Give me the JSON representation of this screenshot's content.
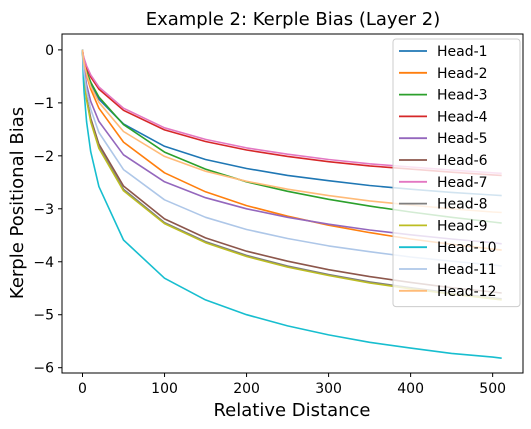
{
  "chart_data": {
    "type": "line",
    "title": "Example 2: Kerple Bias (Layer 2)",
    "xlabel": "Relative Distance",
    "ylabel": "Kerple Positional Bias",
    "xlim": [
      -25,
      537
    ],
    "ylim": [
      -6.1,
      0.3
    ],
    "xticks": [
      0,
      100,
      200,
      300,
      400,
      500
    ],
    "yticks": [
      0,
      -1,
      -2,
      -3,
      -4,
      -5,
      -6
    ],
    "grid": false,
    "legend_position": "top-right",
    "x": [
      0,
      1,
      2,
      5,
      10,
      20,
      50,
      100,
      150,
      200,
      250,
      300,
      350,
      400,
      450,
      500,
      511
    ],
    "series": [
      {
        "name": "Head-1",
        "color": "#1f77b4",
        "values": [
          0,
          -0.17,
          -0.26,
          -0.45,
          -0.66,
          -0.93,
          -1.4,
          -1.82,
          -2.07,
          -2.24,
          -2.37,
          -2.47,
          -2.56,
          -2.63,
          -2.69,
          -2.74,
          -2.75
        ]
      },
      {
        "name": "Head-2",
        "color": "#ff7f0e",
        "values": [
          0,
          -0.16,
          -0.26,
          -0.48,
          -0.74,
          -1.1,
          -1.74,
          -2.32,
          -2.68,
          -2.94,
          -3.14,
          -3.31,
          -3.45,
          -3.57,
          -3.67,
          -3.76,
          -3.78
        ]
      },
      {
        "name": "Head-3",
        "color": "#2ca02c",
        "values": [
          0,
          -0.14,
          -0.22,
          -0.4,
          -0.61,
          -0.89,
          -1.41,
          -1.93,
          -2.25,
          -2.49,
          -2.67,
          -2.82,
          -2.95,
          -3.06,
          -3.16,
          -3.25,
          -3.27
        ]
      },
      {
        "name": "Head-4",
        "color": "#d62728",
        "values": [
          0,
          -0.12,
          -0.19,
          -0.34,
          -0.51,
          -0.74,
          -1.14,
          -1.51,
          -1.73,
          -1.89,
          -2.01,
          -2.11,
          -2.19,
          -2.25,
          -2.31,
          -2.36,
          -2.37
        ]
      },
      {
        "name": "Head-5",
        "color": "#9467bd",
        "values": [
          0,
          -0.22,
          -0.36,
          -0.66,
          -0.97,
          -1.35,
          -1.98,
          -2.49,
          -2.79,
          -3.0,
          -3.16,
          -3.29,
          -3.4,
          -3.49,
          -3.57,
          -3.64,
          -3.66
        ]
      },
      {
        "name": "Head-6",
        "color": "#8c564b",
        "values": [
          0,
          -0.34,
          -0.52,
          -0.9,
          -1.29,
          -1.78,
          -2.57,
          -3.19,
          -3.55,
          -3.8,
          -3.99,
          -4.15,
          -4.28,
          -4.39,
          -4.49,
          -4.57,
          -4.59
        ]
      },
      {
        "name": "Head-7",
        "color": "#e377c2",
        "values": [
          0,
          -0.1,
          -0.16,
          -0.3,
          -0.47,
          -0.7,
          -1.1,
          -1.47,
          -1.69,
          -1.85,
          -1.97,
          -2.07,
          -2.15,
          -2.21,
          -2.27,
          -2.32,
          -2.33
        ]
      },
      {
        "name": "Head-8",
        "color": "#7f7f7f",
        "values": [
          0,
          -0.34,
          -0.53,
          -0.92,
          -1.33,
          -1.83,
          -2.63,
          -3.26,
          -3.62,
          -3.88,
          -4.08,
          -4.24,
          -4.38,
          -4.49,
          -4.59,
          -4.68,
          -4.7
        ]
      },
      {
        "name": "Head-9",
        "color": "#bcbd22",
        "values": [
          0,
          -0.36,
          -0.55,
          -0.95,
          -1.36,
          -1.86,
          -2.66,
          -3.28,
          -3.64,
          -3.9,
          -4.1,
          -4.26,
          -4.4,
          -4.51,
          -4.61,
          -4.7,
          -4.72
        ]
      },
      {
        "name": "Head-10",
        "color": "#17becf",
        "values": [
          0,
          -0.52,
          -0.8,
          -1.36,
          -1.92,
          -2.58,
          -3.59,
          -4.31,
          -4.72,
          -5.0,
          -5.21,
          -5.38,
          -5.52,
          -5.63,
          -5.73,
          -5.8,
          -5.82
        ]
      },
      {
        "name": "Head-11",
        "color": "#aec7e8",
        "values": [
          0,
          -0.28,
          -0.43,
          -0.77,
          -1.12,
          -1.56,
          -2.26,
          -2.83,
          -3.16,
          -3.39,
          -3.56,
          -3.7,
          -3.81,
          -3.91,
          -3.99,
          -4.06,
          -4.08
        ]
      },
      {
        "name": "Head-12",
        "color": "#ffbb78",
        "values": [
          0,
          -0.16,
          -0.25,
          -0.46,
          -0.69,
          -0.99,
          -1.54,
          -2.01,
          -2.29,
          -2.48,
          -2.63,
          -2.75,
          -2.85,
          -2.93,
          -3.0,
          -3.06,
          -3.07
        ]
      }
    ]
  }
}
